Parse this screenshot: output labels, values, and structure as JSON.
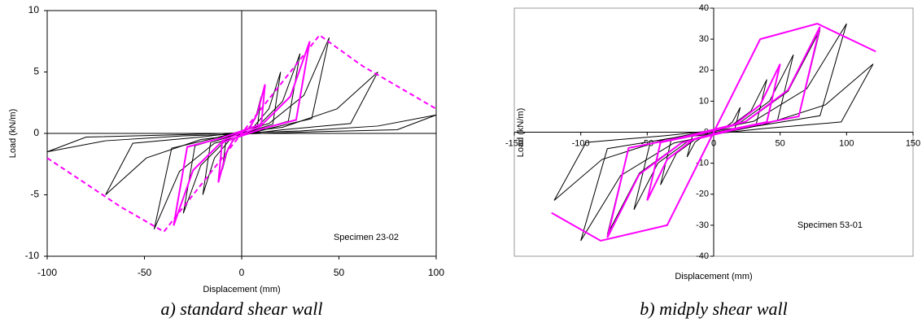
{
  "chart_data": [
    {
      "type": "line",
      "xlabel": "Displacement (mm)",
      "ylabel": "Load (kN/m)",
      "annotation": "Specimen 23-02",
      "caption": "a) standard shear wall",
      "xlim": [
        -100,
        100
      ],
      "xticks": [
        -100,
        -50,
        0,
        50,
        100
      ],
      "ylim": [
        -10,
        10
      ],
      "yticks": [
        -10,
        -5,
        0,
        5,
        10
      ],
      "frame_color": "#000000",
      "series": [
        {
          "color": "#000000",
          "x": [
            10,
            8,
            3,
            -3,
            -7,
            -10,
            -8,
            -3,
            3,
            7,
            10
          ],
          "values": [
            3,
            0.45,
            0.15,
            -0.3,
            -1.2,
            -3,
            -0.45,
            -0.15,
            0.3,
            1.2,
            3
          ]
        },
        {
          "color": "#000000",
          "x": [
            20,
            16,
            6,
            -6,
            -14,
            -20,
            -16,
            -6,
            6,
            14,
            20
          ],
          "values": [
            5,
            0.75,
            0.25,
            -0.5,
            -2,
            -5,
            -0.75,
            -0.25,
            0.5,
            2,
            5
          ]
        },
        {
          "color": "#000000",
          "x": [
            30,
            24,
            9,
            -9,
            -21,
            -30,
            -24,
            -9,
            9,
            21,
            30
          ],
          "values": [
            6.5,
            1,
            0.3,
            -0.7,
            -2.6,
            -6.5,
            -1,
            -0.3,
            0.7,
            2.6,
            6.5
          ]
        },
        {
          "color": "#000000",
          "x": [
            45,
            36,
            14,
            -14,
            -32,
            -45,
            -36,
            -14,
            14,
            32,
            45
          ],
          "values": [
            7.8,
            1.2,
            0.4,
            -0.8,
            -3.1,
            -7.8,
            -1.2,
            -0.4,
            0.8,
            3.1,
            7.8
          ]
        },
        {
          "color": "#000000",
          "x": [
            70,
            56,
            21,
            -21,
            -49,
            -70,
            -56,
            -21,
            21,
            49,
            70
          ],
          "values": [
            5,
            0.8,
            0.3,
            -0.5,
            -2,
            -5,
            -0.8,
            -0.3,
            0.5,
            2,
            5
          ]
        },
        {
          "color": "#000000",
          "x": [
            100,
            80,
            30,
            -30,
            -70,
            -100,
            -80,
            -30,
            30,
            70,
            100
          ],
          "values": [
            1.5,
            0.3,
            0.1,
            -0.2,
            -0.6,
            -1.5,
            -0.3,
            -0.1,
            0.2,
            0.6,
            1.5
          ]
        },
        {
          "color": "#ff00ff",
          "x": [
            12,
            10,
            4,
            -4,
            -8,
            -12,
            -10,
            -4,
            4,
            8,
            12
          ],
          "values": [
            4,
            0.6,
            0.2,
            -0.4,
            -1.6,
            -4,
            -0.6,
            -0.2,
            0.4,
            1.6,
            4
          ]
        },
        {
          "color": "#ff00ff",
          "x": [
            35,
            28,
            11,
            -11,
            -25,
            -35,
            -28,
            -11,
            11,
            25,
            35
          ],
          "values": [
            7.5,
            1.1,
            0.4,
            -0.8,
            -3,
            -7.5,
            -1.1,
            -0.4,
            0.8,
            3,
            7.5
          ]
        },
        {
          "color": "#ff00ff",
          "dashed": true,
          "x": [
            -100,
            -62,
            -40,
            0,
            40,
            62,
            100
          ],
          "values": [
            -2,
            -6,
            -8,
            0,
            8,
            5.5,
            2
          ]
        }
      ]
    },
    {
      "type": "line",
      "xlabel": "Displacement (mm)",
      "ylabel": "Load (kN/m)",
      "annotation": "Specimen 53-01",
      "caption": "b) midply shear wall",
      "xlim": [
        -150,
        150
      ],
      "xticks": [
        -150,
        -100,
        -50,
        0,
        50,
        100,
        150
      ],
      "ylim": [
        -40,
        40
      ],
      "yticks": [
        -40,
        -30,
        -20,
        -10,
        0,
        10,
        20,
        30,
        40
      ],
      "frame_color": "#999999",
      "series": [
        {
          "color": "#000000",
          "x": [
            20,
            16,
            6,
            -6,
            -14,
            -20,
            -16,
            -6,
            6,
            14,
            20
          ],
          "values": [
            8,
            1.2,
            0.4,
            -0.8,
            -3.2,
            -8,
            -1.2,
            -0.4,
            0.8,
            3.2,
            8
          ]
        },
        {
          "color": "#000000",
          "x": [
            40,
            32,
            12,
            -12,
            -28,
            -40,
            -32,
            -12,
            12,
            28,
            40
          ],
          "values": [
            17,
            2.6,
            0.9,
            -1.7,
            -6.8,
            -17,
            -2.6,
            -0.9,
            1.7,
            6.8,
            17
          ]
        },
        {
          "color": "#000000",
          "x": [
            60,
            48,
            18,
            -18,
            -42,
            -60,
            -48,
            -18,
            18,
            42,
            60
          ],
          "values": [
            25,
            3.8,
            1.3,
            -2.5,
            -10,
            -25,
            -3.8,
            -1.3,
            2.5,
            10,
            25
          ]
        },
        {
          "color": "#000000",
          "x": [
            80,
            64,
            24,
            -24,
            -56,
            -80,
            -64,
            -24,
            24,
            56,
            80
          ],
          "values": [
            33,
            5,
            1.7,
            -3.3,
            -13.2,
            -33,
            -5,
            -1.7,
            3.3,
            13.2,
            33
          ]
        },
        {
          "color": "#000000",
          "x": [
            100,
            80,
            30,
            -30,
            -70,
            -100,
            -80,
            -30,
            30,
            70,
            100
          ],
          "values": [
            35,
            5.3,
            1.8,
            -3.5,
            -14,
            -35,
            -5.3,
            -1.8,
            3.5,
            14,
            35
          ]
        },
        {
          "color": "#000000",
          "x": [
            120,
            96,
            36,
            -36,
            -84,
            -120,
            -96,
            -36,
            36,
            84,
            120
          ],
          "values": [
            22,
            3.3,
            1.1,
            -2.2,
            -8.8,
            -22,
            -3.3,
            -1.1,
            2.2,
            8.8,
            22
          ]
        },
        {
          "color": "#ff00ff",
          "x": [
            50,
            40,
            15,
            -15,
            -35,
            -50,
            -40,
            -15,
            15,
            35,
            50
          ],
          "values": [
            22,
            3.3,
            1.1,
            -2.2,
            -8.8,
            -22,
            -3.3,
            -1.1,
            2.2,
            8.8,
            22
          ]
        },
        {
          "color": "#ff00ff",
          "x": [
            80,
            64,
            24,
            -24,
            -56,
            -80,
            -64,
            -24,
            24,
            56,
            80
          ],
          "values": [
            34,
            5.1,
            1.7,
            -3.4,
            -13.6,
            -34,
            -5.1,
            -1.7,
            3.4,
            13.6,
            34
          ]
        },
        {
          "color": "#ff00ff",
          "x": [
            -122,
            -85,
            -35,
            0,
            35,
            78,
            122
          ],
          "values": [
            -26,
            -35,
            -30,
            0,
            30,
            35,
            26
          ]
        }
      ]
    }
  ]
}
